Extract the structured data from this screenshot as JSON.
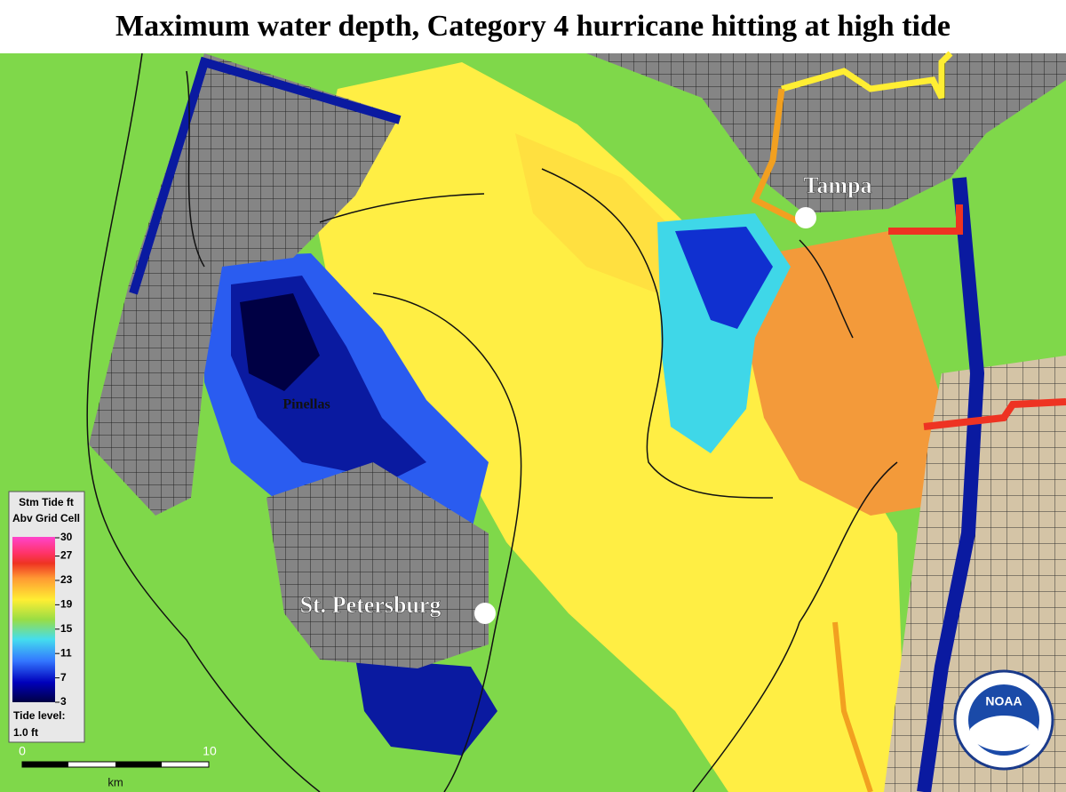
{
  "header": {
    "title": "Maximum water depth, Category 4 hurricane hitting at high tide"
  },
  "places": [
    {
      "label": "Tampa"
    },
    {
      "label": "St. Petersburg"
    },
    {
      "label": "Pinellas"
    }
  ],
  "legend": {
    "title_lines": [
      "Stm Tide ft",
      "Abv Grid Cell"
    ],
    "ticks": [
      30,
      27,
      23,
      19,
      15,
      11,
      7,
      3
    ],
    "tide_label": "Tide level:",
    "tide_value": "1.0 ft"
  },
  "scale_bar": {
    "start": "0",
    "end": "10",
    "unit": "km"
  },
  "logo": {
    "text": "NOAA"
  }
}
